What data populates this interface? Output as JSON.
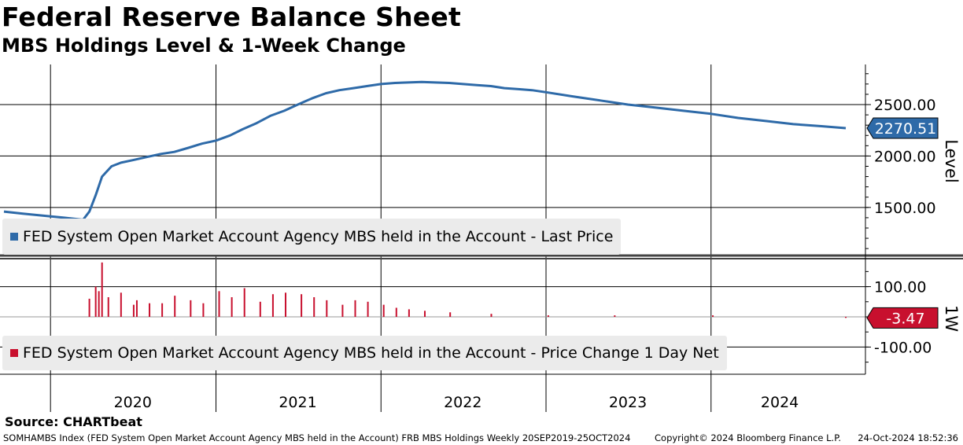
{
  "title": "Federal Reserve Balance Sheet",
  "subtitle": "MBS Holdings Level & 1-Week Change",
  "source": "Source: CHARTbeat",
  "footer": {
    "description": "SOMHAMBS Index (FED System Open Market Account Agency MBS held in the Account) FRB MBS Holdings  Weekly 20SEP2019-25OCT2024",
    "copyright": "Copyright© 2024 Bloomberg Finance L.P.",
    "timestamp": "24-Oct-2024 18:52:36"
  },
  "colors": {
    "level": "#2e6aa8",
    "change": "#c8102e",
    "legend_bg": "#ebebeb"
  },
  "chart_data": [
    {
      "type": "line",
      "panel": "top",
      "ylabel": "Level",
      "ylim": [
        1040,
        2890
      ],
      "yticks": [
        1500,
        2000,
        2500
      ],
      "ytick_labels": [
        "1500.00",
        "2000.00",
        "2500.00"
      ],
      "last_value_label": "2270.51",
      "legend": "FED System Open Market Account Agency MBS held in the Account - Last Price",
      "series": [
        {
          "name": "FED System Open Market Account Agency MBS held in the Account - Last Price",
          "x": [
            "2019-09-20",
            "2019-11-01",
            "2019-12-15",
            "2020-01-31",
            "2020-03-13",
            "2020-03-27",
            "2020-04-10",
            "2020-04-24",
            "2020-05-15",
            "2020-06-05",
            "2020-07-01",
            "2020-08-01",
            "2020-09-01",
            "2020-10-01",
            "2020-11-01",
            "2020-12-01",
            "2021-01-01",
            "2021-02-01",
            "2021-03-01",
            "2021-04-01",
            "2021-05-01",
            "2021-06-01",
            "2021-07-01",
            "2021-08-01",
            "2021-09-01",
            "2021-10-01",
            "2021-11-01",
            "2021-12-01",
            "2022-01-01",
            "2022-02-01",
            "2022-03-01",
            "2022-04-01",
            "2022-05-01",
            "2022-06-01",
            "2022-07-01",
            "2022-08-01",
            "2022-09-01",
            "2022-10-01",
            "2022-11-01",
            "2022-12-01",
            "2023-01-01",
            "2023-03-01",
            "2023-05-01",
            "2023-07-01",
            "2023-09-01",
            "2023-11-01",
            "2024-01-01",
            "2024-03-01",
            "2024-05-01",
            "2024-07-01",
            "2024-09-01",
            "2024-10-25"
          ],
          "values": [
            1460,
            1440,
            1420,
            1400,
            1380,
            1460,
            1620,
            1800,
            1900,
            1935,
            1960,
            1990,
            2020,
            2040,
            2080,
            2120,
            2150,
            2200,
            2260,
            2320,
            2390,
            2440,
            2500,
            2560,
            2610,
            2640,
            2660,
            2680,
            2700,
            2710,
            2715,
            2720,
            2715,
            2710,
            2700,
            2690,
            2680,
            2660,
            2650,
            2640,
            2620,
            2580,
            2540,
            2500,
            2470,
            2440,
            2410,
            2370,
            2340,
            2310,
            2290,
            2270.51
          ]
        }
      ]
    },
    {
      "type": "bar",
      "panel": "bottom",
      "ylabel": "1W",
      "ylim": [
        -190,
        190
      ],
      "yticks": [
        -100,
        100
      ],
      "ytick_labels": [
        "-100.00",
        "100.00"
      ],
      "last_value_label": "-3.47",
      "legend": "FED System Open Market Account Agency MBS held in the Account - Price Change 1 Day Net",
      "x_axis_labels": [
        "2020",
        "2021",
        "2022",
        "2023",
        "2024"
      ],
      "series": [
        {
          "name": "FED System Open Market Account Agency MBS held in the Account - Price Change 1 Day Net",
          "x": [
            "2020-03-27",
            "2020-04-10",
            "2020-04-17",
            "2020-04-24",
            "2020-05-08",
            "2020-06-05",
            "2020-07-03",
            "2020-07-10",
            "2020-08-07",
            "2020-09-04",
            "2020-10-02",
            "2020-11-06",
            "2020-12-04",
            "2021-01-08",
            "2021-02-05",
            "2021-03-05",
            "2021-04-09",
            "2021-05-07",
            "2021-06-04",
            "2021-07-09",
            "2021-08-06",
            "2021-09-03",
            "2021-10-08",
            "2021-11-05",
            "2021-12-03",
            "2022-01-07",
            "2022-02-04",
            "2022-03-04",
            "2022-04-08",
            "2022-06-03",
            "2022-09-02",
            "2023-01-06",
            "2023-06-02",
            "2024-01-05",
            "2024-10-25"
          ],
          "values": [
            60,
            100,
            85,
            180,
            65,
            80,
            40,
            55,
            45,
            45,
            70,
            55,
            45,
            85,
            65,
            95,
            50,
            75,
            80,
            75,
            65,
            55,
            40,
            55,
            50,
            40,
            30,
            25,
            20,
            15,
            10,
            5,
            5,
            5,
            -3.47
          ]
        }
      ]
    }
  ]
}
